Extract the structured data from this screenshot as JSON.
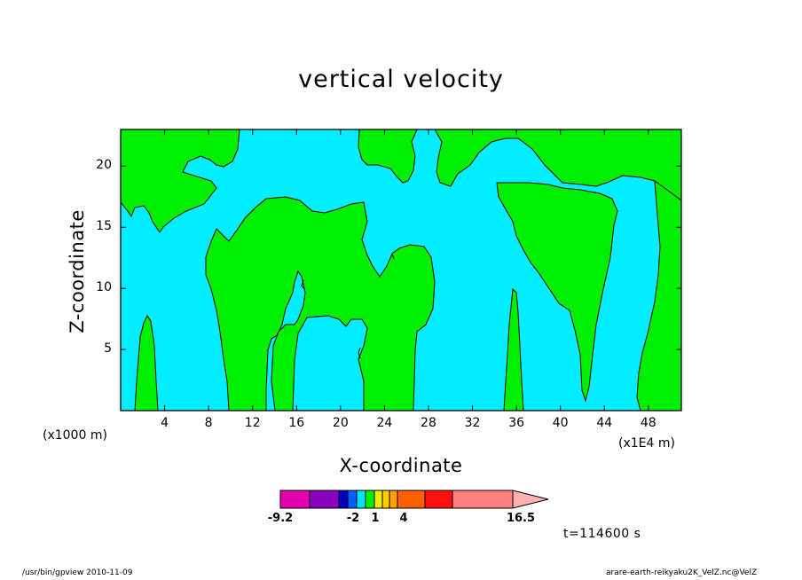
{
  "footer": {
    "left": "/usr/bin/gpview   2010-11-09",
    "right": "arare-earth-reikyaku2K_VelZ.nc@VelZ"
  },
  "time_label": "t=114600 s",
  "colors": {
    "background": "#00eeff",
    "positive": "#00ee00",
    "contour": "#000000"
  },
  "chart_data": {
    "type": "contour",
    "title": "vertical velocity",
    "xlabel": "X-coordinate",
    "ylabel": "Z-coordinate",
    "x_unit": "(x1000 m)",
    "x_scale": "(x1E4 m)",
    "xlim": [
      0,
      51
    ],
    "ylim": [
      0,
      23
    ],
    "x_ticks": [
      4,
      8,
      12,
      16,
      20,
      24,
      28,
      32,
      36,
      40,
      44,
      48
    ],
    "y_ticks": [
      5,
      10,
      15,
      20
    ],
    "colorbar": {
      "colors": [
        "#e000b0",
        "#8800c0",
        "#0000c0",
        "#0060ff",
        "#00e0ff",
        "#00ee00",
        "#eeee00",
        "#ffcc00",
        "#ffa000",
        "#ff6000",
        "#ff1010",
        "#ff8080",
        "#ffb0b0"
      ],
      "labels": [
        "-9.2",
        "-2",
        "1",
        "4",
        "16.5"
      ]
    }
  }
}
